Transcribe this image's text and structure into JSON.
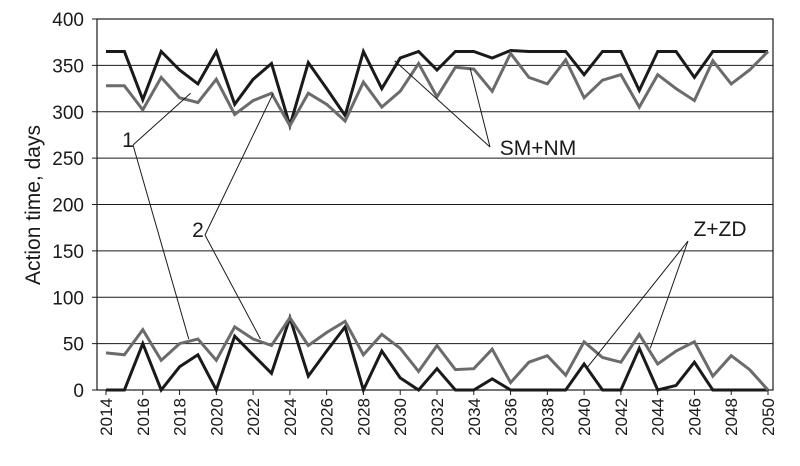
{
  "chart_data": {
    "type": "line",
    "ylabel": "Action time, days",
    "xlabel": "",
    "ylim": [
      0,
      400
    ],
    "yticks": [
      0,
      50,
      100,
      150,
      200,
      250,
      300,
      350,
      400
    ],
    "xlim": [
      2014,
      2050
    ],
    "xticks": [
      2014,
      2016,
      2018,
      2020,
      2022,
      2024,
      2026,
      2028,
      2030,
      2032,
      2034,
      2036,
      2038,
      2040,
      2042,
      2044,
      2046,
      2048,
      2050
    ],
    "grid": "horizontal",
    "x": [
      2014,
      2015,
      2016,
      2017,
      2018,
      2019,
      2020,
      2021,
      2022,
      2023,
      2024,
      2025,
      2026,
      2027,
      2028,
      2029,
      2030,
      2031,
      2032,
      2033,
      2034,
      2035,
      2036,
      2037,
      2038,
      2039,
      2040,
      2041,
      2042,
      2043,
      2044,
      2045,
      2046,
      2047,
      2048,
      2049,
      2050
    ],
    "series": [
      {
        "color": "#1a1a1a",
        "values": [
          365,
          365,
          313,
          365,
          345,
          330,
          365,
          308,
          335,
          352,
          285,
          353,
          325,
          296,
          365,
          325,
          358,
          365,
          345,
          365,
          365,
          358,
          366,
          365,
          365,
          365,
          340,
          365,
          365,
          323,
          365,
          365,
          337,
          365,
          365,
          365,
          365
        ]
      },
      {
        "color": "#6b6b6b",
        "values": [
          328,
          328,
          302,
          337,
          315,
          310,
          335,
          297,
          312,
          320,
          285,
          320,
          308,
          290,
          332,
          305,
          322,
          352,
          316,
          348,
          346,
          322,
          363,
          337,
          330,
          356,
          315,
          334,
          340,
          305,
          340,
          325,
          312,
          355,
          330,
          345,
          365
        ]
      },
      {
        "color": "#1a1a1a",
        "values": [
          0,
          0,
          50,
          0,
          25,
          38,
          0,
          58,
          38,
          18,
          78,
          15,
          42,
          68,
          0,
          42,
          13,
          0,
          23,
          0,
          0,
          12,
          0,
          0,
          0,
          0,
          28,
          0,
          0,
          45,
          0,
          5,
          30,
          0,
          0,
          0,
          0
        ]
      },
      {
        "color": "#6b6b6b",
        "values": [
          40,
          38,
          65,
          32,
          50,
          55,
          32,
          68,
          55,
          48,
          78,
          48,
          62,
          74,
          38,
          60,
          45,
          20,
          48,
          22,
          23,
          44,
          8,
          30,
          37,
          16,
          52,
          35,
          30,
          60,
          28,
          42,
          52,
          15,
          37,
          22,
          0
        ]
      }
    ],
    "annotations": [
      {
        "text": "1",
        "targets": [
          [
            2018.6,
            320
          ],
          [
            2018.5,
            55
          ]
        ]
      },
      {
        "text": "2",
        "targets": [
          [
            2023.1,
            320
          ],
          [
            2022.4,
            55
          ]
        ]
      },
      {
        "text": "SM+NM",
        "targets": [
          [
            2029.7,
            355
          ],
          [
            2033.8,
            347
          ]
        ]
      },
      {
        "text": "Z+ZD",
        "targets": [
          [
            2040.2,
            25
          ],
          [
            2043.6,
            45
          ]
        ]
      }
    ]
  }
}
